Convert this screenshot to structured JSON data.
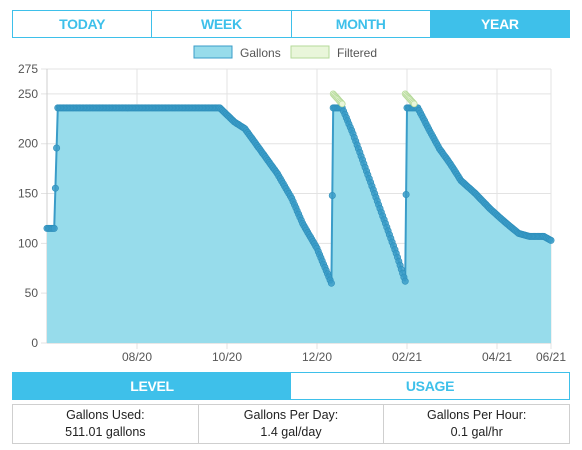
{
  "range_tabs": [
    {
      "label": "TODAY",
      "active": false
    },
    {
      "label": "WEEK",
      "active": false
    },
    {
      "label": "MONTH",
      "active": false
    },
    {
      "label": "YEAR",
      "active": true
    }
  ],
  "view_tabs": [
    {
      "label": "LEVEL",
      "active": true
    },
    {
      "label": "USAGE",
      "active": false
    }
  ],
  "stats": [
    {
      "label": "Gallons Used:",
      "value": "511.01 gallons"
    },
    {
      "label": "Gallons Per Day:",
      "value": "1.4 gal/day"
    },
    {
      "label": "Gallons Per Hour:",
      "value": "0.1 gal/hr"
    }
  ],
  "colors": {
    "accent": "#3ec0ea",
    "gallons_fill": "#97dceb",
    "gallons_line": "#3a9cc8",
    "filtered_fill": "#e9f6da",
    "filtered_line": "#b5d99a"
  },
  "chart_data": {
    "type": "area",
    "title": "",
    "xlabel": "",
    "ylabel": "",
    "ylim": [
      0,
      275
    ],
    "yticks": [
      0,
      50,
      100,
      150,
      200,
      250,
      275
    ],
    "xticks": [
      "08/20",
      "10/20",
      "12/20",
      "02/21",
      "04/21",
      "06/21"
    ],
    "legend_position": "top-center",
    "grid": true,
    "series": [
      {
        "name": "Gallons",
        "points": [
          [
            0,
            115
          ],
          [
            0.2,
            115
          ],
          [
            0.3,
            236
          ],
          [
            2.5,
            236
          ],
          [
            4.8,
            236
          ],
          [
            5.2,
            222
          ],
          [
            5.5,
            215
          ],
          [
            5.8,
            200
          ],
          [
            6.1,
            185
          ],
          [
            6.4,
            170
          ],
          [
            6.8,
            145
          ],
          [
            7.1,
            120
          ],
          [
            7.5,
            95
          ],
          [
            7.9,
            60
          ],
          [
            7.95,
            236
          ],
          [
            8.2,
            236
          ],
          [
            8.5,
            210
          ],
          [
            8.8,
            180
          ],
          [
            9.1,
            150
          ],
          [
            9.4,
            120
          ],
          [
            9.7,
            90
          ],
          [
            9.95,
            62
          ],
          [
            10.0,
            236
          ],
          [
            10.3,
            236
          ],
          [
            10.6,
            215
          ],
          [
            10.9,
            195
          ],
          [
            11.2,
            180
          ],
          [
            11.5,
            163
          ],
          [
            11.9,
            150
          ],
          [
            12.3,
            135
          ],
          [
            12.7,
            122
          ],
          [
            13.1,
            110
          ],
          [
            13.4,
            107
          ],
          [
            13.8,
            107
          ],
          [
            14.0,
            103
          ]
        ]
      },
      {
        "name": "Filtered",
        "points": [
          [
            7.95,
            250
          ],
          [
            8.2,
            240
          ],
          [
            9.95,
            250
          ],
          [
            10.2,
            240
          ]
        ]
      }
    ]
  }
}
